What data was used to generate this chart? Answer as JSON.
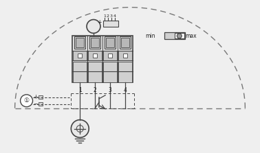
{
  "bg_color": "#efefef",
  "line_color": "#444444",
  "dark": "#222222",
  "dashed_color": "#777777",
  "fig_width": 3.78,
  "fig_height": 2.23,
  "dpi": 100
}
